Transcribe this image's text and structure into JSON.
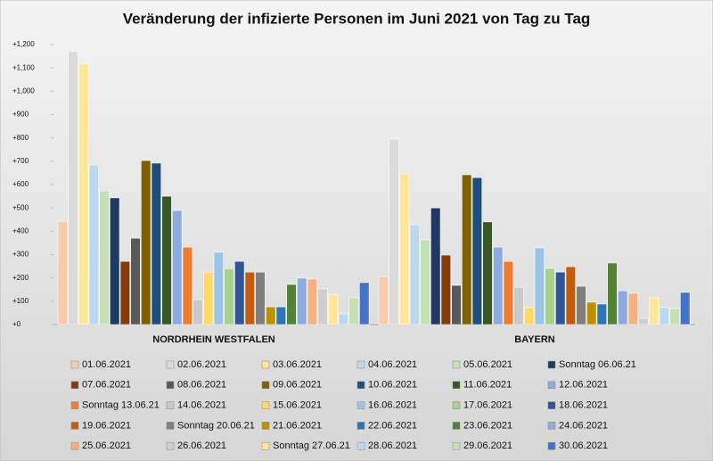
{
  "chart_data": {
    "type": "bar",
    "title": "Veränderung der infizierte Personen im Juni 2021 von Tag zu Tag",
    "categories": [
      "NORDRHEIN WESTFALEN",
      "BAYERN"
    ],
    "ylim": [
      0,
      1200
    ],
    "yticks": [
      {
        "value": 0,
        "label": "+0"
      },
      {
        "value": 100,
        "label": "+100"
      },
      {
        "value": 200,
        "label": "+200"
      },
      {
        "value": 300,
        "label": "+300"
      },
      {
        "value": 400,
        "label": "+400"
      },
      {
        "value": 500,
        "label": "+500"
      },
      {
        "value": 600,
        "label": "+600"
      },
      {
        "value": 700,
        "label": "+700"
      },
      {
        "value": 800,
        "label": "+800"
      },
      {
        "value": 900,
        "label": "+900"
      },
      {
        "value": 1000,
        "label": "+1,000"
      },
      {
        "value": 1100,
        "label": "+1,100"
      },
      {
        "value": 1200,
        "label": "+1,200"
      }
    ],
    "series": [
      {
        "name": "01.06.2021",
        "color": "#f8cbad",
        "values": [
          443,
          206
        ]
      },
      {
        "name": "02.06.2021",
        "color": "#dbdbdb",
        "values": [
          1170,
          795
        ]
      },
      {
        "name": "03.06.2021",
        "color": "#ffe699",
        "values": [
          1116,
          646
        ]
      },
      {
        "name": "04.06.2021",
        "color": "#bdd7ee",
        "values": [
          684,
          428
        ]
      },
      {
        "name": "05.06.2021",
        "color": "#c5e0b4",
        "values": [
          573,
          363
        ]
      },
      {
        "name": "Sonntag 06.06.21",
        "color": "#1f3864",
        "values": [
          543,
          500
        ]
      },
      {
        "name": "07.06.2021",
        "color": "#843c0c",
        "values": [
          271,
          298
        ]
      },
      {
        "name": "08.06.2021",
        "color": "#595959",
        "values": [
          370,
          168
        ]
      },
      {
        "name": "09.06.2021",
        "color": "#7f6000",
        "values": [
          703,
          642
        ]
      },
      {
        "name": "10.06.2021",
        "color": "#1f4e79",
        "values": [
          692,
          630
        ]
      },
      {
        "name": "11.06.2021",
        "color": "#375623",
        "values": [
          550,
          440
        ]
      },
      {
        "name": "12.06.2021",
        "color": "#8faadc",
        "values": [
          489,
          332
        ]
      },
      {
        "name": "Sonntag 13.06.21",
        "color": "#ed7d31",
        "values": [
          332,
          271
        ]
      },
      {
        "name": "14.06.2021",
        "color": "#c9c9c9",
        "values": [
          107,
          160
        ]
      },
      {
        "name": "15.06.2021",
        "color": "#ffd966",
        "values": [
          225,
          73
        ]
      },
      {
        "name": "16.06.2021",
        "color": "#9dc3e6",
        "values": [
          310,
          329
        ]
      },
      {
        "name": "17.06.2021",
        "color": "#a9d18e",
        "values": [
          240,
          241
        ]
      },
      {
        "name": "18.06.2021",
        "color": "#2f5597",
        "values": [
          271,
          225
        ]
      },
      {
        "name": "19.06.2021",
        "color": "#c55a11",
        "values": [
          225,
          248
        ]
      },
      {
        "name": "Sonntag 20.06.21",
        "color": "#7f7f7f",
        "values": [
          225,
          164
        ]
      },
      {
        "name": "21.06.2021",
        "color": "#bf9000",
        "values": [
          76,
          96
        ]
      },
      {
        "name": "22.06.2021",
        "color": "#2e75b6",
        "values": [
          76,
          88
        ]
      },
      {
        "name": "23.06.2021",
        "color": "#548235",
        "values": [
          172,
          264
        ]
      },
      {
        "name": "24.06.2021",
        "color": "#8faadc",
        "values": [
          199,
          145
        ]
      },
      {
        "name": "25.06.2021",
        "color": "#f4b183",
        "values": [
          195,
          134
        ]
      },
      {
        "name": "26.06.2021",
        "color": "#d0cece",
        "values": [
          153,
          27
        ]
      },
      {
        "name": "Sonntag 27.06.21",
        "color": "#ffe699",
        "values": [
          130,
          115
        ]
      },
      {
        "name": "28.06.2021",
        "color": "#bdd7ee",
        "values": [
          46,
          73
        ]
      },
      {
        "name": "29.06.2021",
        "color": "#c5e0b4",
        "values": [
          115,
          69
        ]
      },
      {
        "name": "30.06.2021",
        "color": "#4472c4",
        "values": [
          180,
          138
        ]
      }
    ]
  }
}
